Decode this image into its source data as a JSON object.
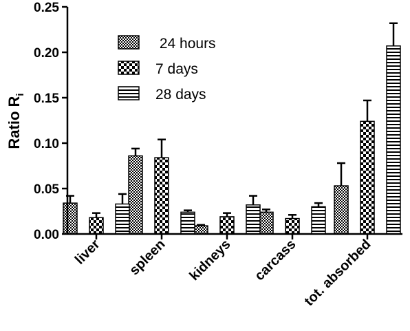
{
  "chart_data": {
    "type": "bar",
    "title": "",
    "xlabel": "",
    "ylabel": "Ratio R",
    "ylabel_subscript": "i",
    "ylim": [
      0,
      0.25
    ],
    "yticks": [
      "0.00",
      "0.05",
      "0.10",
      "0.15",
      "0.20",
      "0.25"
    ],
    "categories": [
      "liver",
      "spleen",
      "kidneys",
      "carcass",
      "tot. absorbed"
    ],
    "legend_position": "top-left",
    "series": [
      {
        "name": " 24 hours",
        "pattern": "checker",
        "values": [
          0.034,
          0.086,
          0.009,
          0.024,
          0.053
        ],
        "errors": [
          0.008,
          0.008,
          0.001,
          0.003,
          0.025
        ]
      },
      {
        "name": "7 days",
        "pattern": "coarse-checker",
        "values": [
          0.018,
          0.084,
          0.019,
          0.017,
          0.124
        ],
        "errors": [
          0.005,
          0.02,
          0.004,
          0.004,
          0.023
        ]
      },
      {
        "name": "28 days",
        "pattern": "horizontal-stripes",
        "values": [
          0.033,
          0.024,
          0.032,
          0.03,
          0.207
        ],
        "errors": [
          0.011,
          0.002,
          0.01,
          0.004,
          0.025
        ]
      }
    ]
  }
}
